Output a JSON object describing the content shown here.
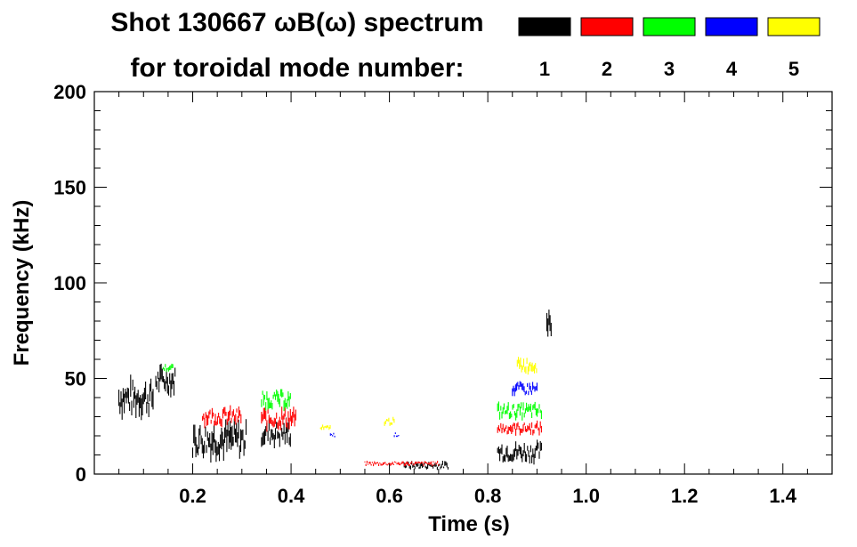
{
  "chart_data": {
    "type": "scatter",
    "title_line1": "Shot 130667 ωB(ω) spectrum",
    "title_line2": "for toroidal mode number:",
    "xlabel": "Time (s)",
    "ylabel": "Frequency (kHz)",
    "xlim": [
      0.0,
      1.5
    ],
    "ylim": [
      0,
      200
    ],
    "x_ticks": [
      {
        "value": 0.2,
        "label": "0.2"
      },
      {
        "value": 0.4,
        "label": "0.4"
      },
      {
        "value": 0.6,
        "label": "0.6"
      },
      {
        "value": 0.8,
        "label": "0.8"
      },
      {
        "value": 1.0,
        "label": "1.0"
      },
      {
        "value": 1.2,
        "label": "1.2"
      },
      {
        "value": 1.4,
        "label": "1.4"
      }
    ],
    "y_ticks": [
      {
        "value": 0,
        "label": "0"
      },
      {
        "value": 50,
        "label": "50"
      },
      {
        "value": 100,
        "label": "100"
      },
      {
        "value": 150,
        "label": "150"
      },
      {
        "value": 200,
        "label": "200"
      }
    ],
    "legend": {
      "placement": "top-right",
      "entries": [
        {
          "label": "1",
          "color": "#000000"
        },
        {
          "label": "2",
          "color": "#ff0000"
        },
        {
          "label": "3",
          "color": "#00ff00"
        },
        {
          "label": "4",
          "color": "#0000ff"
        },
        {
          "label": "5",
          "color": "#ffff00"
        }
      ]
    },
    "series": [
      {
        "color": "#000000",
        "segments": [
          {
            "t0": 0.05,
            "t1": 0.12,
            "f0": 28,
            "f1": 52
          },
          {
            "t0": 0.125,
            "t1": 0.165,
            "f0": 40,
            "f1": 58
          },
          {
            "t0": 0.2,
            "t1": 0.31,
            "f0": 6,
            "f1": 30
          },
          {
            "t0": 0.34,
            "t1": 0.4,
            "f0": 13,
            "f1": 30
          },
          {
            "t0": 0.63,
            "t1": 0.72,
            "f0": 2,
            "f1": 7
          },
          {
            "t0": 0.82,
            "t1": 0.91,
            "f0": 5,
            "f1": 18
          },
          {
            "t0": 0.92,
            "t1": 0.93,
            "f0": 70,
            "f1": 92
          }
        ]
      },
      {
        "color": "#ff0000",
        "segments": [
          {
            "t0": 0.22,
            "t1": 0.3,
            "f0": 24,
            "f1": 36
          },
          {
            "t0": 0.34,
            "t1": 0.41,
            "f0": 22,
            "f1": 36
          },
          {
            "t0": 0.55,
            "t1": 0.7,
            "f0": 4,
            "f1": 7
          },
          {
            "t0": 0.82,
            "t1": 0.91,
            "f0": 20,
            "f1": 28
          }
        ]
      },
      {
        "color": "#00ff00",
        "segments": [
          {
            "t0": 0.14,
            "t1": 0.16,
            "f0": 53,
            "f1": 58
          },
          {
            "t0": 0.34,
            "t1": 0.4,
            "f0": 33,
            "f1": 45
          },
          {
            "t0": 0.82,
            "t1": 0.91,
            "f0": 28,
            "f1": 38
          }
        ]
      },
      {
        "color": "#0000ff",
        "segments": [
          {
            "t0": 0.48,
            "t1": 0.49,
            "f0": 19,
            "f1": 22
          },
          {
            "t0": 0.61,
            "t1": 0.62,
            "f0": 19,
            "f1": 22
          },
          {
            "t0": 0.85,
            "t1": 0.9,
            "f0": 40,
            "f1": 49
          }
        ]
      },
      {
        "color": "#ffff00",
        "segments": [
          {
            "t0": 0.46,
            "t1": 0.48,
            "f0": 22,
            "f1": 26
          },
          {
            "t0": 0.59,
            "t1": 0.61,
            "f0": 25,
            "f1": 30
          },
          {
            "t0": 0.86,
            "t1": 0.9,
            "f0": 52,
            "f1": 62
          }
        ]
      }
    ]
  }
}
